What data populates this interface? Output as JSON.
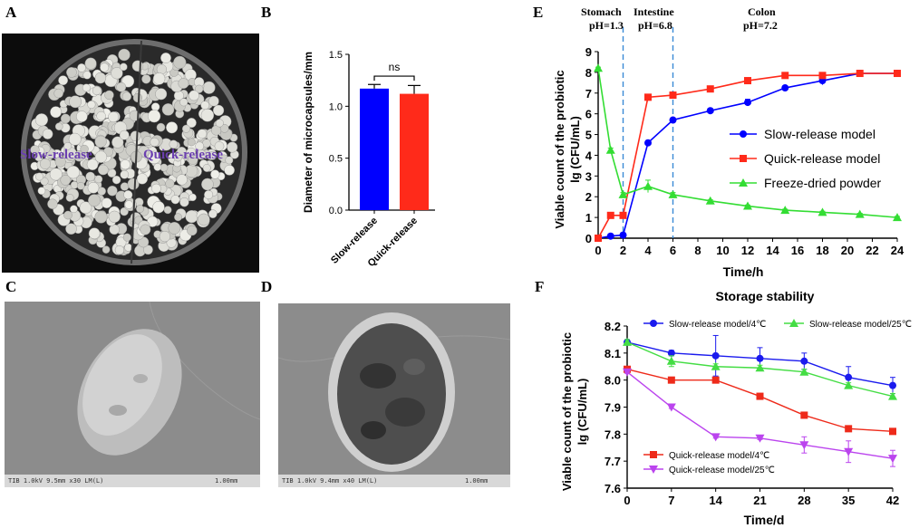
{
  "panels": {
    "A": {
      "letter": "A",
      "label_left": "Slow-release",
      "label_right": "Quick-release"
    },
    "B": {
      "letter": "B",
      "colors": {
        "slow": "#0000ff",
        "quick": "#ff2a1a"
      }
    },
    "C": {
      "letter": "C",
      "footer_info": "TIB 1.0kV 9.5mm x30 LM(L)",
      "scale_label": "1.00mm"
    },
    "D": {
      "letter": "D",
      "footer_info": "TIB 1.0kV 9.4mm x40 LM(L)",
      "scale_label": "1.00mm"
    },
    "E": {
      "letter": "E",
      "phase_stomach": "Stomach",
      "phase_stomach_ph": "pH=1.3",
      "phase_intestine": "Intestine",
      "phase_intestine_ph": "pH=6.8",
      "phase_colon": "Colon",
      "phase_colon_ph": "pH=7.2",
      "colors": {
        "slow": "#0000ff",
        "quick": "#ff2a1a",
        "freeze": "#33dd33",
        "divider": "#3a8ad6"
      }
    },
    "F": {
      "letter": "F",
      "colors": {
        "slow4": "#1a1aee",
        "slow25": "#44dd44",
        "quick4": "#ee2a1a",
        "quick25": "#bb44ee"
      }
    }
  },
  "chart_data": [
    {
      "id": "B",
      "type": "bar",
      "categories": [
        "Slow-release",
        "Quick-release"
      ],
      "values": [
        1.17,
        1.12
      ],
      "errors": [
        0.04,
        0.08
      ],
      "ylabel": "Diameter of microcapsules/mm",
      "ylim": [
        0,
        1.5
      ],
      "yticks": [
        "0.0",
        "0.5",
        "1.0",
        "1.5"
      ],
      "annotation": "ns"
    },
    {
      "id": "E",
      "type": "line",
      "xlabel": "Time/h",
      "ylabel": "Viable count of the probiotic",
      "ylabel2": "lg (CFU/mL)",
      "xlim": [
        0,
        24
      ],
      "ylim": [
        0,
        9
      ],
      "xticks": [
        "0",
        "2",
        "4",
        "6",
        "8",
        "10",
        "12",
        "14",
        "16",
        "18",
        "20",
        "22",
        "24"
      ],
      "yticks": [
        "0",
        "1",
        "2",
        "3",
        "4",
        "5",
        "6",
        "7",
        "8",
        "9"
      ],
      "dividers": [
        2,
        6
      ],
      "series": [
        {
          "name": "Slow-release model",
          "x": [
            0,
            1,
            2,
            4,
            6,
            9,
            12,
            15,
            18,
            21,
            24
          ],
          "y": [
            0.0,
            0.1,
            0.15,
            4.6,
            5.7,
            6.15,
            6.55,
            7.25,
            7.6,
            7.95,
            7.95
          ],
          "err": [
            0.05,
            0.1,
            0.1,
            0.1,
            0.1,
            0.1,
            0.15,
            0.1,
            0.2,
            0.1,
            0.05
          ]
        },
        {
          "name": "Quick-release model",
          "x": [
            0,
            1,
            2,
            4,
            6,
            9,
            12,
            15,
            18,
            21,
            24
          ],
          "y": [
            0.0,
            1.1,
            1.1,
            6.8,
            6.9,
            7.2,
            7.6,
            7.85,
            7.85,
            7.95,
            7.95
          ],
          "err": [
            0.05,
            0.05,
            0.1,
            0.1,
            0.1,
            0.1,
            0.1,
            0.1,
            0.1,
            0.05,
            0.05
          ]
        },
        {
          "name": "Freeze-dried powder",
          "x": [
            0,
            1,
            2,
            4,
            6,
            9,
            12,
            15,
            18,
            21,
            24
          ],
          "y": [
            8.2,
            4.25,
            2.1,
            2.5,
            2.1,
            1.8,
            1.55,
            1.35,
            1.25,
            1.15,
            1.0
          ],
          "err": [
            0.05,
            0.1,
            0.1,
            0.3,
            0.1,
            0.05,
            0.05,
            0.05,
            0.05,
            0.05,
            0.05
          ]
        }
      ]
    },
    {
      "id": "F",
      "type": "line",
      "title": "Storage stability",
      "xlabel": "Time/d",
      "ylabel": "Viable count of the probiotic",
      "ylabel2": "lg (CFU/mL)",
      "xlim": [
        0,
        42
      ],
      "ylim": [
        7.6,
        8.2
      ],
      "xticks": [
        "0",
        "7",
        "14",
        "21",
        "28",
        "35",
        "42"
      ],
      "yticks": [
        "7.6",
        "7.7",
        "7.8",
        "7.9",
        "8.0",
        "8.1",
        "8.2"
      ],
      "series": [
        {
          "name": "Slow-release model/4℃",
          "x": [
            0,
            7,
            14,
            21,
            28,
            35,
            42
          ],
          "y": [
            8.14,
            8.1,
            8.09,
            8.08,
            8.07,
            8.01,
            7.98
          ],
          "err": [
            0.01,
            0.01,
            0.075,
            0.04,
            0.03,
            0.04,
            0.03
          ]
        },
        {
          "name": "Slow-release model/25℃",
          "x": [
            0,
            7,
            14,
            21,
            28,
            35,
            42
          ],
          "y": [
            8.14,
            8.07,
            8.05,
            8.045,
            8.03,
            7.98,
            7.94
          ],
          "err": [
            0.01,
            0.02,
            0.01,
            0.01,
            0.01,
            0.01,
            0.01
          ]
        },
        {
          "name": "Quick-release model/4℃",
          "x": [
            0,
            7,
            14,
            21,
            28,
            35,
            42
          ],
          "y": [
            8.04,
            8.0,
            8.0,
            7.94,
            7.87,
            7.82,
            7.81
          ],
          "err": [
            0.005,
            0.005,
            0.005,
            0.005,
            0.005,
            0.005,
            0.005
          ]
        },
        {
          "name": "Quick-release model/25℃",
          "x": [
            0,
            7,
            14,
            21,
            28,
            35,
            42
          ],
          "y": [
            8.03,
            7.9,
            7.79,
            7.785,
            7.76,
            7.735,
            7.71
          ],
          "err": [
            0.005,
            0.005,
            0.005,
            0.005,
            0.03,
            0.04,
            0.03
          ]
        }
      ]
    }
  ]
}
